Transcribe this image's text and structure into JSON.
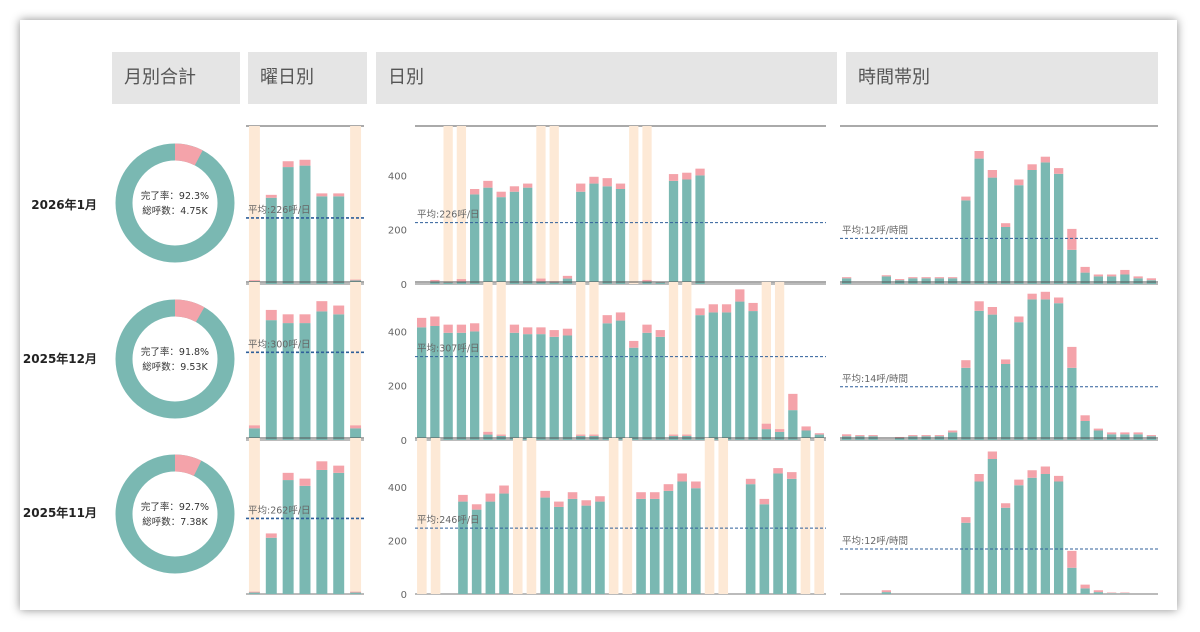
{
  "headers": {
    "monthly": "月別合計",
    "weekday": "曜日別",
    "daily": "日別",
    "hourly": "時間帯別"
  },
  "colors": {
    "complete": "#7ab8b2",
    "incomplete": "#f4a3aa",
    "weekend": "#fde9d6",
    "avgLine": "#2f5f9a"
  },
  "chart_data": [
    {
      "type": "bar",
      "row": "2026年1月",
      "donut": {
        "completion_rate": 92.3,
        "label_rate": "完了率：92.3%",
        "label_total": "総呼数：4.75K"
      },
      "weekday": {
        "values": [
          10,
          295,
          400,
          405,
          300,
          300,
          12
        ],
        "incomplete": [
          3,
          10,
          20,
          20,
          10,
          10,
          3
        ],
        "weekend": [
          0,
          6
        ],
        "avg": 226,
        "avg_label": "平均:226呼/日"
      },
      "daily": {
        "yticks": [
          0,
          200,
          400
        ],
        "ymax": 560,
        "days": 31,
        "values": [
          0,
          10,
          5,
          10,
          330,
          355,
          320,
          340,
          355,
          10,
          5,
          20,
          340,
          370,
          360,
          350,
          0,
          10,
          5,
          380,
          385,
          400,
          0,
          0,
          0,
          0,
          0,
          0,
          0,
          0,
          0
        ],
        "incomplete": [
          0,
          5,
          3,
          8,
          20,
          25,
          20,
          20,
          15,
          10,
          5,
          10,
          30,
          25,
          30,
          20,
          0,
          5,
          3,
          25,
          25,
          25,
          0,
          0,
          0,
          0,
          0,
          0,
          0,
          0,
          0
        ],
        "weekend": [
          2,
          3,
          9,
          10,
          16,
          17
        ],
        "avg": 226,
        "avg_label": "平均:226呼/日"
      },
      "hourly": {
        "ymax": 40,
        "hours": 24,
        "values": [
          1.5,
          0,
          0,
          2,
          1,
          1.5,
          1.5,
          1.5,
          1.5,
          22,
          33,
          28,
          15,
          26,
          30,
          32,
          29,
          9,
          3,
          2,
          2,
          2.5,
          1.5,
          1
        ],
        "incomplete": [
          0.3,
          0,
          0,
          0.3,
          0.3,
          0.3,
          0.3,
          0.3,
          0.3,
          1,
          2,
          2,
          1,
          1.5,
          1.5,
          1.5,
          1.5,
          5.5,
          1.5,
          0.5,
          0.5,
          1.2,
          0.5,
          0.5
        ],
        "avg": 12,
        "avg_label": "平均:12呼/時間"
      }
    },
    {
      "type": "bar",
      "row": "2025年12月",
      "donut": {
        "completion_rate": 91.8,
        "label_rate": "完了率：91.8%",
        "label_total": "総呼数：9.53K"
      },
      "weekday": {
        "values": [
          40,
          410,
          400,
          400,
          440,
          430,
          40
        ],
        "incomplete": [
          10,
          35,
          30,
          30,
          35,
          30,
          10
        ],
        "weekend": [
          0,
          6
        ],
        "avg": 300,
        "avg_label": "平均:300呼/日"
      },
      "daily": {
        "yticks": [
          0,
          200,
          400
        ],
        "ymax": 560,
        "days": 31,
        "values": [
          415,
          420,
          395,
          395,
          400,
          20,
          15,
          395,
          390,
          390,
          380,
          385,
          15,
          15,
          430,
          440,
          340,
          395,
          380,
          15,
          15,
          460,
          470,
          470,
          510,
          475,
          40,
          30,
          110,
          35,
          20
        ],
        "incomplete": [
          35,
          35,
          30,
          30,
          30,
          10,
          5,
          30,
          25,
          25,
          25,
          25,
          5,
          5,
          30,
          30,
          25,
          30,
          25,
          5,
          5,
          25,
          30,
          30,
          45,
          30,
          20,
          10,
          60,
          15,
          5
        ],
        "weekend": [
          5,
          6,
          12,
          13,
          19,
          20,
          26,
          27
        ],
        "avg": 307,
        "avg_label": "平均:307呼/日"
      },
      "hourly": {
        "ymax": 40,
        "hours": 24,
        "values": [
          1,
          1,
          1,
          0,
          0.5,
          1,
          1,
          1,
          2,
          19,
          34,
          33,
          20,
          31,
          37,
          37,
          36,
          19,
          5,
          2.5,
          1.5,
          1.5,
          1.5,
          1
        ],
        "incomplete": [
          0.5,
          0.3,
          0.3,
          0,
          0.3,
          0.3,
          0.3,
          0.3,
          0.5,
          2,
          2.5,
          2,
          1.2,
          1.5,
          1.5,
          2,
          1.5,
          5.5,
          1.5,
          0.5,
          0.5,
          0.5,
          0.5,
          0.3
        ],
        "avg": 14,
        "avg_label": "平均:14呼/時間"
      }
    },
    {
      "type": "bar",
      "row": "2025年11月",
      "donut": {
        "completion_rate": 92.7,
        "label_rate": "完了率：92.7%",
        "label_total": "総呼数：7.38K"
      },
      "weekday": {
        "values": [
          5,
          195,
          395,
          375,
          430,
          420,
          5
        ],
        "incomplete": [
          3,
          15,
          25,
          25,
          30,
          25,
          3
        ],
        "weekend": [
          0,
          6
        ],
        "avg": 262,
        "avg_label": "平均:262呼/日"
      },
      "daily": {
        "yticks": [
          0,
          200,
          400
        ],
        "ymax": 560,
        "days": 30,
        "values": [
          0,
          0,
          0,
          345,
          315,
          345,
          375,
          0,
          0,
          360,
          325,
          355,
          330,
          345,
          0,
          0,
          355,
          355,
          385,
          420,
          395,
          0,
          0,
          0,
          410,
          335,
          450,
          430,
          0,
          0
        ],
        "incomplete": [
          0,
          0,
          0,
          25,
          20,
          30,
          30,
          0,
          0,
          25,
          20,
          25,
          20,
          20,
          0,
          0,
          25,
          25,
          25,
          30,
          25,
          0,
          0,
          0,
          20,
          20,
          20,
          25,
          0,
          0
        ],
        "weekend": [
          0,
          1,
          7,
          8,
          14,
          15,
          21,
          22,
          28,
          29
        ],
        "avg": 246,
        "avg_label": "平均:246呼/日"
      },
      "hourly": {
        "ymax": 40,
        "hours": 24,
        "values": [
          0,
          0,
          0,
          0.5,
          0,
          0,
          0,
          0,
          0,
          19,
          30,
          36,
          23,
          29,
          31,
          32,
          30,
          7,
          1.5,
          0.5,
          0.2,
          0.2,
          0,
          0
        ],
        "incomplete": [
          0,
          0,
          0,
          0.5,
          0,
          0,
          0,
          0,
          0,
          1.5,
          2,
          2,
          1.2,
          1.5,
          2,
          2,
          1.5,
          4.5,
          1,
          0.5,
          0.2,
          0.2,
          0,
          0
        ],
        "avg": 12,
        "avg_label": "平均:12呼/時間"
      }
    }
  ]
}
